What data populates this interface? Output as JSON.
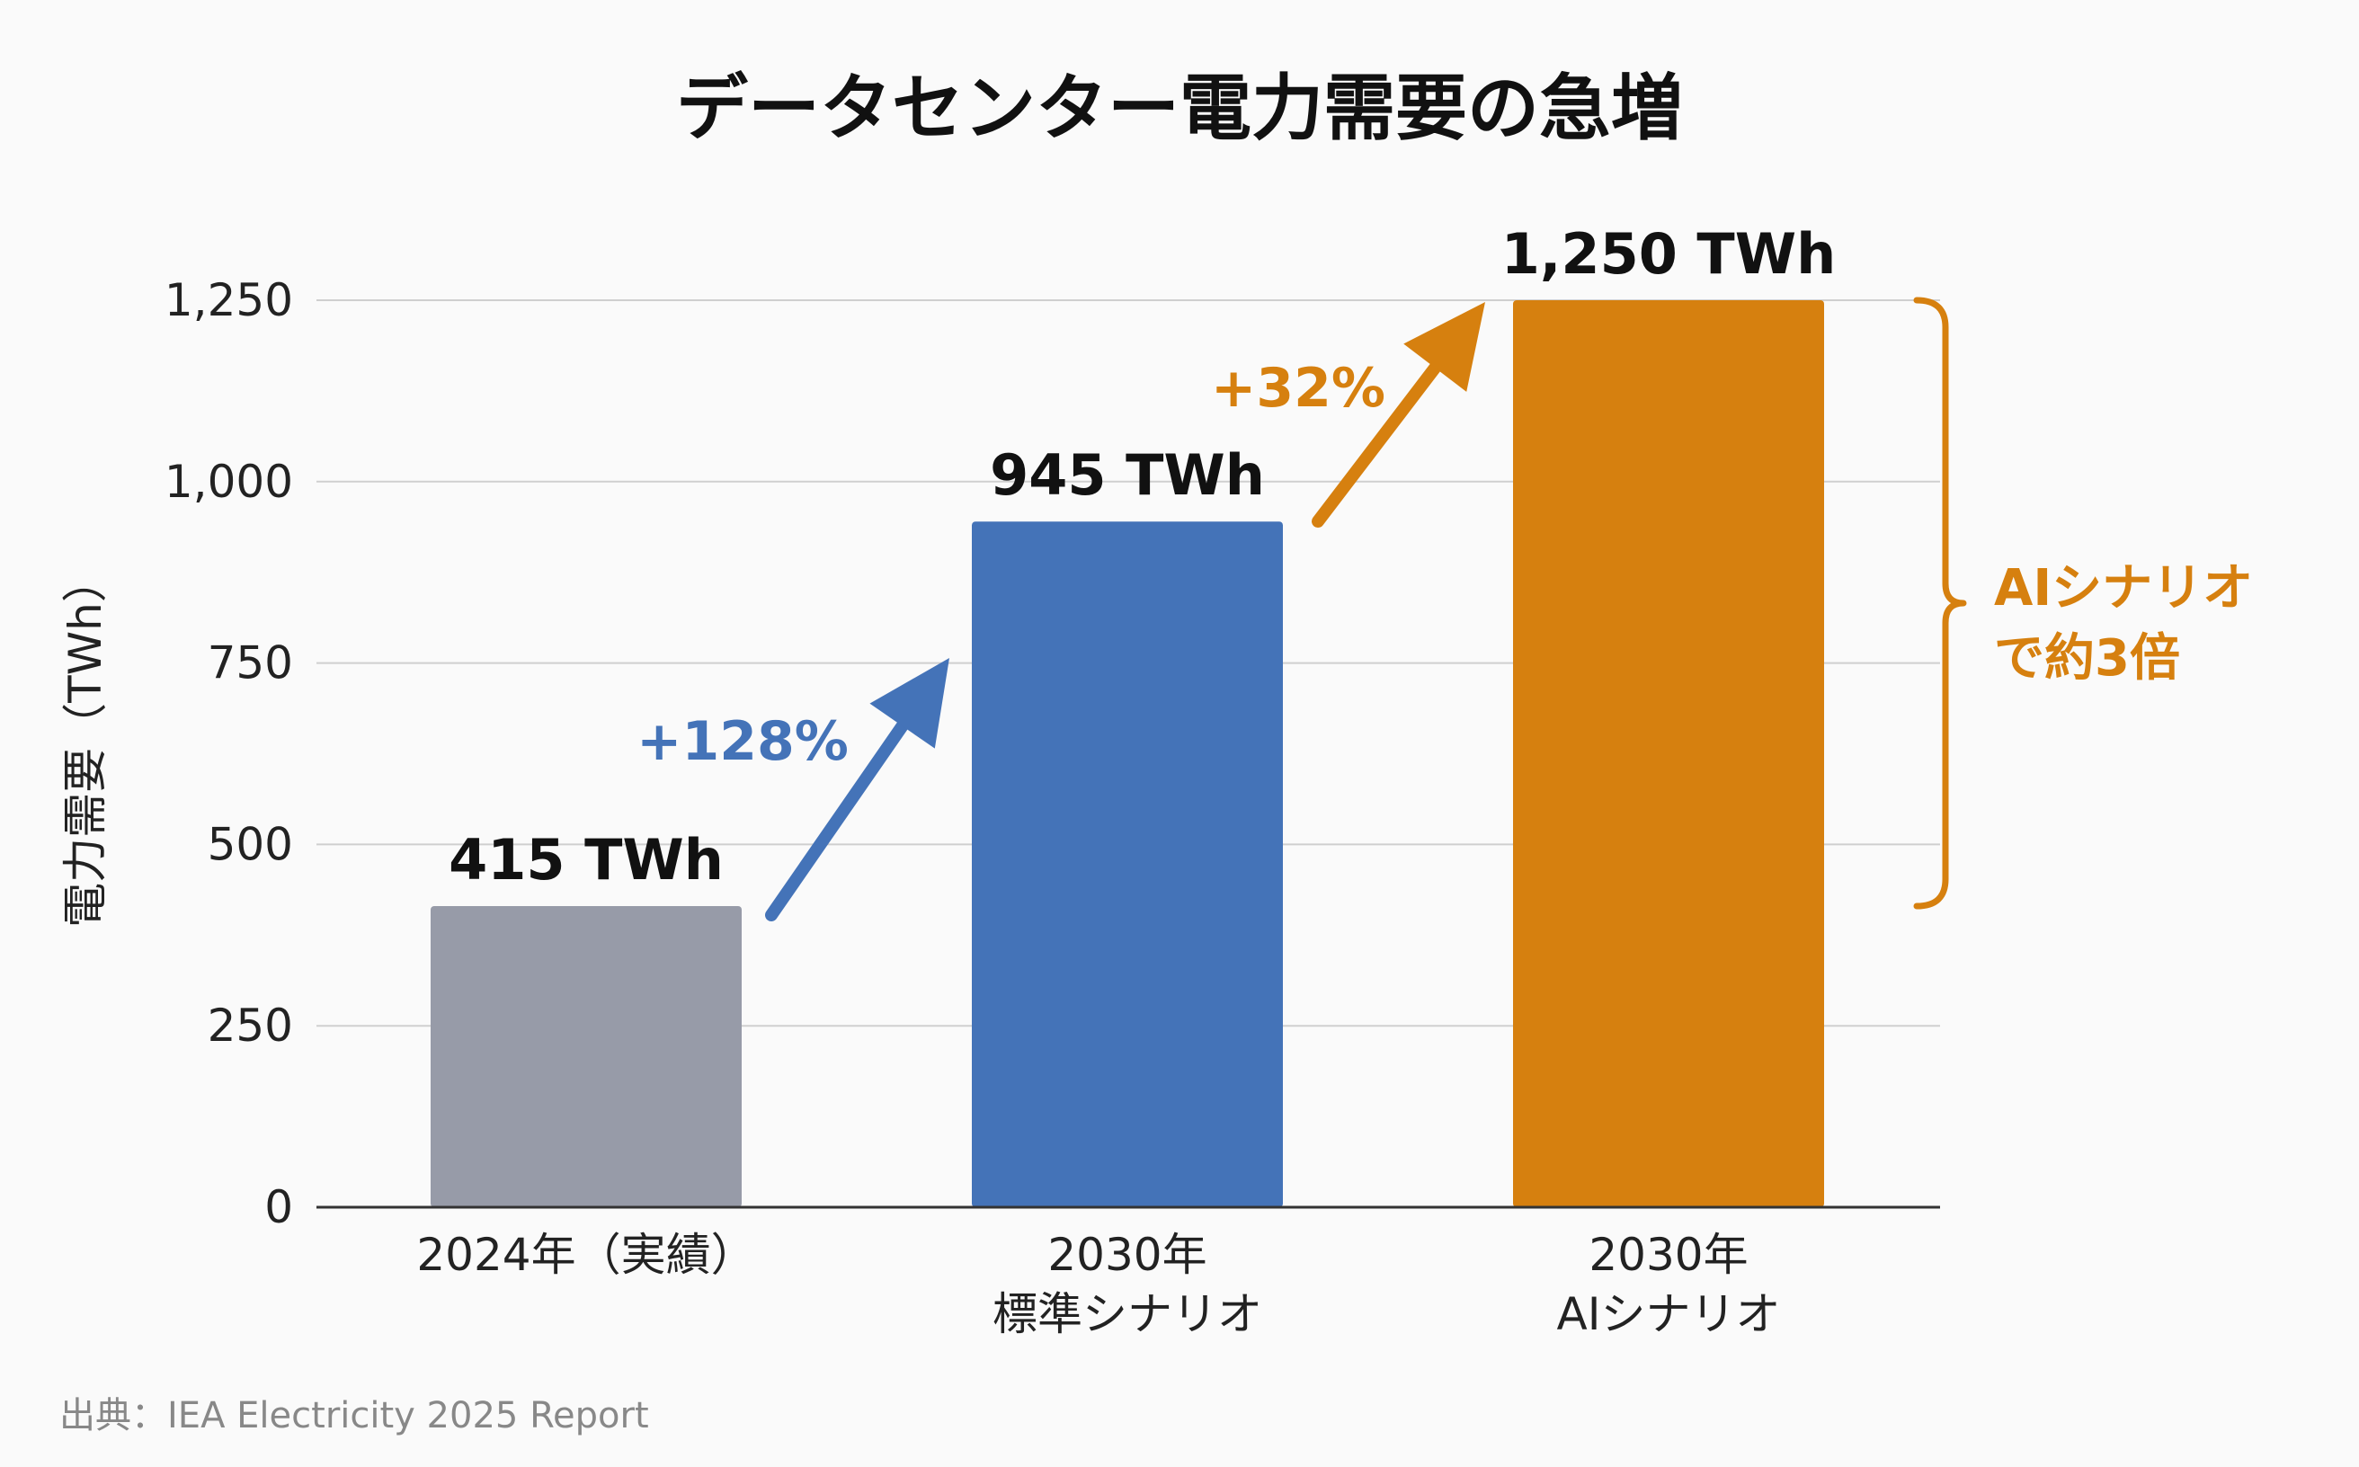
{
  "chart_data": {
    "type": "bar",
    "title": "データセンター電力需要の急増",
    "ylabel": "電力需要（TWh）",
    "xlabel": "",
    "ylim": [
      0,
      1250
    ],
    "yticks": [
      0,
      250,
      500,
      750,
      1000,
      1250
    ],
    "ytick_labels": [
      "0",
      "250",
      "500",
      "750",
      "1,000",
      "1,250"
    ],
    "grid": true,
    "categories": [
      [
        "2024年（実績）"
      ],
      [
        "2030年",
        "標準シナリオ"
      ],
      [
        "2030年",
        "AIシナリオ"
      ]
    ],
    "values": [
      415,
      945,
      1250
    ],
    "data_labels": [
      "415 TWh",
      "945 TWh",
      "1,250 TWh"
    ],
    "bar_colors": [
      "#979ba8",
      "#4473b8",
      "#d6800f"
    ],
    "annotations": [
      {
        "text": "+128%",
        "from": 0,
        "to": 1,
        "color": "#4473b8"
      },
      {
        "text": "+32%",
        "from": 1,
        "to": 2,
        "color": "#d6800f"
      }
    ],
    "bracket_note": {
      "lines": [
        "AIシナリオ",
        "で約3倍"
      ],
      "color": "#d6800f",
      "from_value": 415,
      "to_value": 1250
    }
  },
  "source": "出典：IEA Electricity 2025 Report"
}
